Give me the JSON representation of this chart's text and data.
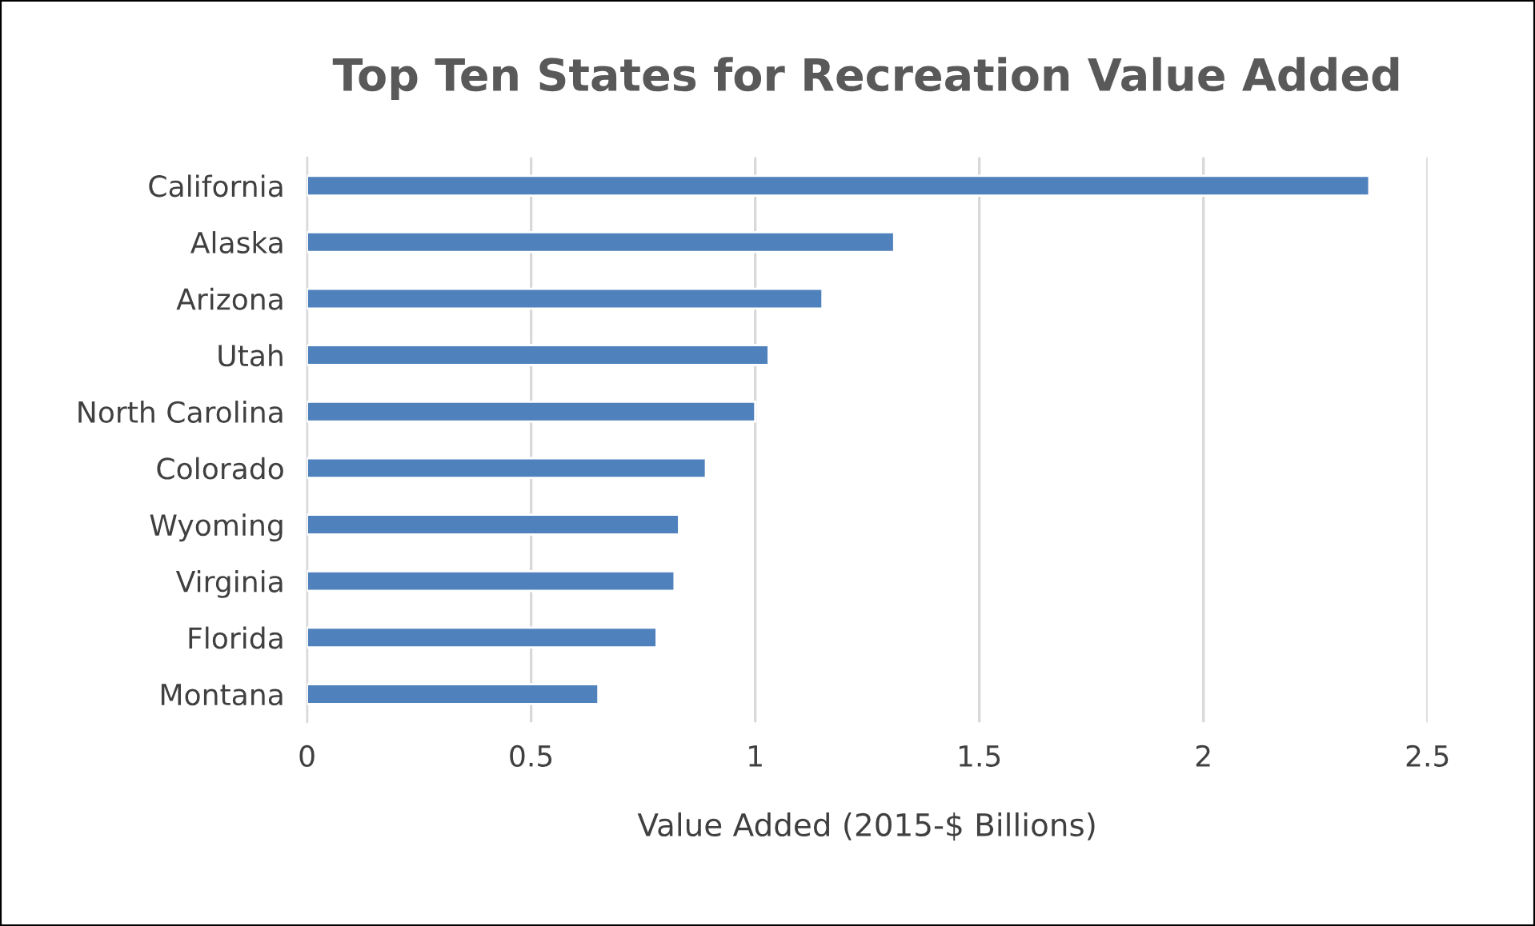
{
  "chart_data": {
    "type": "bar",
    "orientation": "horizontal",
    "title": "Top Ten States for Recreation Value Added",
    "xlabel": "Value Added (2015-$ Billions)",
    "categories": [
      "California",
      "Alaska",
      "Arizona",
      "Utah",
      "North Carolina",
      "Colorado",
      "Wyoming",
      "Virginia",
      "Florida",
      "Montana"
    ],
    "values": [
      2.37,
      1.31,
      1.15,
      1.03,
      1.0,
      0.89,
      0.83,
      0.82,
      0.78,
      0.65
    ],
    "color": "#4f81bd",
    "xlim": [
      0,
      2.5
    ],
    "xticks": [
      0,
      0.5,
      1,
      1.5,
      2,
      2.5
    ],
    "grid": "x",
    "legend": false
  }
}
